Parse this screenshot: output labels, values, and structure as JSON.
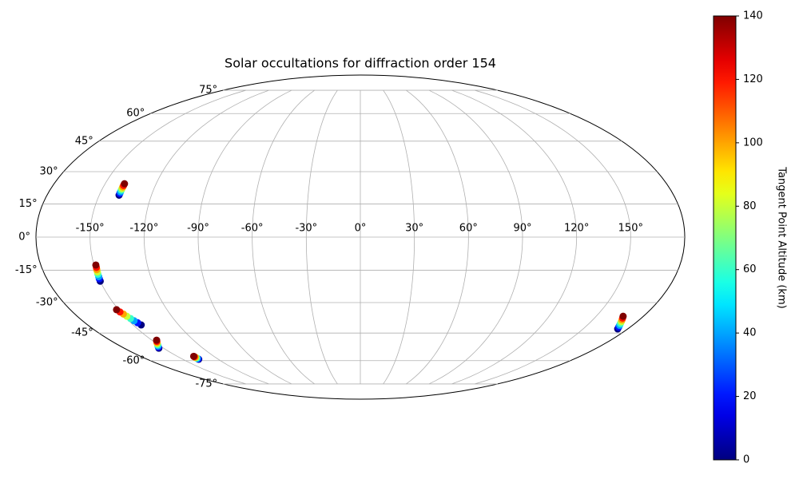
{
  "chart_data": {
    "type": "scatter",
    "projection": "mollweide",
    "title": "Solar occultations for diffraction order 154",
    "colorbar_label": "Tangent Point Altitude (km)",
    "colormap": "jet",
    "grid": true,
    "x": [
      -138.6,
      -138.6,
      -138.6,
      -138.6,
      -138.6,
      -138.6,
      -138.6,
      -138.6,
      -150,
      -149.9,
      -149.7,
      -149.6,
      -149.4,
      -149.3,
      -149.1,
      -149.0,
      -144.7,
      -145.6,
      -146.6,
      -147.5,
      -148.5,
      -149.4,
      -150.4,
      -151.3,
      -153.6,
      -152.6,
      -151.6,
      -150.6,
      -149.5,
      -148.5,
      -147.5,
      -146.5,
      -136.5,
      -136.5,
      -136.5,
      -136.5,
      -136.5,
      -136.5,
      -136.5,
      -136.5,
      173.3,
      172.4,
      171.5,
      170.6,
      169.8,
      168.9,
      168.0,
      167.1
    ],
    "values": [
      19,
      19.8,
      20.5,
      21.3,
      22.0,
      22.8,
      23.5,
      24.3,
      -20,
      -18.9,
      -17.9,
      -16.8,
      -15.8,
      -14.7,
      -13.7,
      -12.6,
      -40.9,
      -39.8,
      -38.8,
      -37.7,
      -36.6,
      -35.5,
      -34.5,
      -33.4,
      -53,
      -52.4,
      -51.8,
      -51.2,
      -50.5,
      -49.9,
      -49.3,
      -48.7,
      -59.2,
      -59.0,
      -58.7,
      -58.5,
      -58.2,
      -58.0,
      -57.7,
      -57.5,
      -42.9,
      -42.0,
      -41.1,
      -40.2,
      -39.3,
      -38.4,
      -37.5,
      -36.6
    ],
    "altitude": [
      0,
      20,
      40,
      60,
      80,
      100,
      120,
      140,
      0,
      20,
      40,
      60,
      80,
      100,
      120,
      140,
      0,
      20,
      40,
      60,
      80,
      100,
      120,
      140,
      0,
      20,
      40,
      60,
      80,
      100,
      120,
      140,
      0,
      20,
      40,
      60,
      80,
      100,
      120,
      140,
      0,
      20,
      40,
      60,
      80,
      100,
      120,
      140
    ],
    "xticks": [
      {
        "value": -150,
        "label": "-150°"
      },
      {
        "value": -120,
        "label": "-120°"
      },
      {
        "value": -90,
        "label": "-90°"
      },
      {
        "value": -60,
        "label": "-60°"
      },
      {
        "value": -30,
        "label": "-30°"
      },
      {
        "value": 0,
        "label": "0°"
      },
      {
        "value": 30,
        "label": "30°"
      },
      {
        "value": 60,
        "label": "60°"
      },
      {
        "value": 90,
        "label": "90°"
      },
      {
        "value": 120,
        "label": "120°"
      },
      {
        "value": 150,
        "label": "150°"
      }
    ],
    "yticks": [
      {
        "value": -75,
        "label": "-75°"
      },
      {
        "value": -60,
        "label": "-60°"
      },
      {
        "value": -45,
        "label": "-45°"
      },
      {
        "value": -30,
        "label": "-30°"
      },
      {
        "value": -15,
        "label": "-15°"
      },
      {
        "value": 0,
        "label": "0°"
      },
      {
        "value": 15,
        "label": "15°"
      },
      {
        "value": 30,
        "label": "30°"
      },
      {
        "value": 45,
        "label": "45°"
      },
      {
        "value": 60,
        "label": "60°"
      },
      {
        "value": 75,
        "label": "75°"
      }
    ],
    "clim": [
      0,
      140
    ],
    "cticks": [
      0,
      20,
      40,
      60,
      80,
      100,
      120,
      140
    ]
  }
}
